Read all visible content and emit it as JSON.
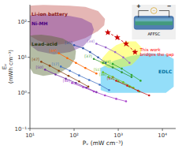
{
  "chart_data": {
    "type": "line",
    "x_label": "Pᵥ (mW cm⁻³)",
    "y_label": "Eᵥ\n(mWh cm⁻³)",
    "log": true,
    "grid": false,
    "marker": "circle",
    "line_style": "solid",
    "xlim": [
      10,
      20000
    ],
    "ylim": [
      0.1,
      300
    ],
    "xticks": [
      {
        "value": 10,
        "label": "10¹"
      },
      {
        "value": 100,
        "label": "10²"
      },
      {
        "value": 1000,
        "label": "10³"
      },
      {
        "value": 10000,
        "label": "10⁴"
      }
    ],
    "yticks": [
      {
        "value": 0.1,
        "label": "10⁻¹"
      },
      {
        "value": 1,
        "label": "10⁰"
      },
      {
        "value": 10,
        "label": "10¹"
      },
      {
        "value": 100,
        "label": "10²"
      }
    ],
    "regions": [
      {
        "name": "Li-ion battery",
        "color": "#c0504d",
        "label_color": "#8b1a1a",
        "x": [
          10,
          10,
          13,
          20,
          40,
          80,
          180,
          350,
          500,
          480,
          350,
          180,
          80,
          35,
          15,
          10
        ],
        "y": [
          40,
          280,
          290,
          295,
          290,
          280,
          260,
          200,
          120,
          80,
          55,
          35,
          25,
          22,
          30,
          40
        ]
      },
      {
        "name": "EDLC",
        "color": "#00b0f0",
        "label_color": "#0070a0",
        "x": [
          400,
          600,
          1000,
          2000,
          5000,
          12000,
          18000,
          18000,
          12000,
          5000,
          2000,
          800,
          400
        ],
        "y": [
          1.2,
          1.0,
          1.0,
          1.0,
          1.0,
          1.0,
          1.5,
          9,
          12,
          13,
          11,
          8,
          5
        ]
      },
      {
        "color": "#ffff00",
        "x": [
          380,
          450,
          600,
          900,
          1500,
          2500,
          3500,
          3000,
          2000,
          1000,
          600,
          450,
          380
        ],
        "y": [
          7,
          10,
          15,
          22,
          28,
          28,
          18,
          10,
          6,
          5,
          5,
          6,
          7
        ]
      },
      {
        "name": "Ni-MH",
        "color": "#7030a0",
        "label_color": "#4a0080",
        "x": [
          10,
          10,
          13,
          20,
          40,
          80,
          150,
          250,
          280,
          240,
          160,
          80,
          35,
          15,
          10
        ],
        "y": [
          22,
          150,
          155,
          160,
          155,
          145,
          125,
          90,
          60,
          35,
          20,
          14,
          12,
          15,
          22
        ]
      },
      {
        "name": "Lead-acid",
        "color": "#4f6228",
        "label_color": "#2d3a10",
        "x": [
          10,
          10,
          12,
          18,
          30,
          55,
          90,
          110,
          105,
          80,
          45,
          20,
          12,
          10
        ],
        "y": [
          5,
          40,
          42,
          43,
          40,
          34,
          24,
          15,
          9,
          5.5,
          3.5,
          3,
          3.5,
          5
        ]
      }
    ],
    "series": [
      {
        "name": "[35]",
        "color": "#3355aa",
        "x": [
          100,
          160,
          230,
          350,
          520
        ],
        "values": [
          22,
          18,
          14,
          10,
          7
        ]
      },
      {
        "name": "[34]",
        "color": "#9966cc",
        "x": [
          320,
          520,
          850,
          1300,
          1800
        ],
        "values": [
          24,
          19,
          14,
          10,
          7
        ]
      },
      {
        "name": "[49]",
        "color": "#ff6600",
        "x": [
          45,
          70,
          110,
          180,
          320
        ],
        "values": [
          13,
          9.5,
          7,
          5,
          3.5
        ]
      },
      {
        "name": "[37]",
        "color": "#339933",
        "x": [
          280,
          450,
          750,
          1200,
          2000
        ],
        "values": [
          9,
          7,
          5.2,
          3.8,
          2.8
        ]
      },
      {
        "name": "[48]",
        "color": "#33aa33",
        "x": [
          750,
          1200,
          2000,
          3200
        ],
        "values": [
          6.5,
          4.8,
          3.2,
          2.2
        ]
      },
      {
        "name": "[47]",
        "color": "#8B4513",
        "x": [
          18,
          28,
          45,
          75,
          130,
          210
        ],
        "values": [
          7.5,
          5.8,
          4.2,
          3.0,
          2.1,
          1.5
        ]
      },
      {
        "name": "[17]",
        "color": "#4472c4",
        "x": [
          50,
          80,
          130,
          220,
          380,
          620
        ],
        "values": [
          5.5,
          4.2,
          3.1,
          2.3,
          1.7,
          1.2
        ]
      },
      {
        "name": "[51]",
        "color": "#70c020",
        "x": [
          450,
          750,
          1300,
          2200
        ],
        "values": [
          3.8,
          2.8,
          2.0,
          1.4
        ]
      },
      {
        "name": "[50]",
        "color": "#7030a0",
        "x": [
          22,
          38,
          65,
          110,
          190,
          320
        ],
        "values": [
          4.5,
          3.3,
          2.5,
          1.9,
          1.4,
          1.05
        ]
      },
      {
        "name": "[36]",
        "color": "#55bb22",
        "x": [
          600,
          1000,
          1800,
          3000
        ],
        "values": [
          2.8,
          2.1,
          1.5,
          1.1
        ]
      },
      {
        "name": "[46]",
        "color": "#aa44cc",
        "x": [
          90,
          160,
          280,
          500,
          900,
          1500
        ],
        "values": [
          1.9,
          1.45,
          1.1,
          0.85,
          0.68,
          0.58
        ]
      },
      {
        "name": "[42]",
        "color": "#cc2222",
        "x": [
          900,
          1600,
          2800,
          5000
        ],
        "values": [
          2.2,
          1.6,
          1.15,
          0.85
        ]
      },
      {
        "color": "#cc0000",
        "marker": "star",
        "line_style": "dashed",
        "x": [
          580,
          950,
          1500,
          2400
        ],
        "values": [
          50,
          36,
          24,
          14
        ]
      }
    ],
    "annotations": [
      {
        "text": "This work\nbridges the gap",
        "color": "red"
      }
    ],
    "inset_labels": [
      "+",
      "−",
      "~",
      "AFFSC"
    ]
  }
}
